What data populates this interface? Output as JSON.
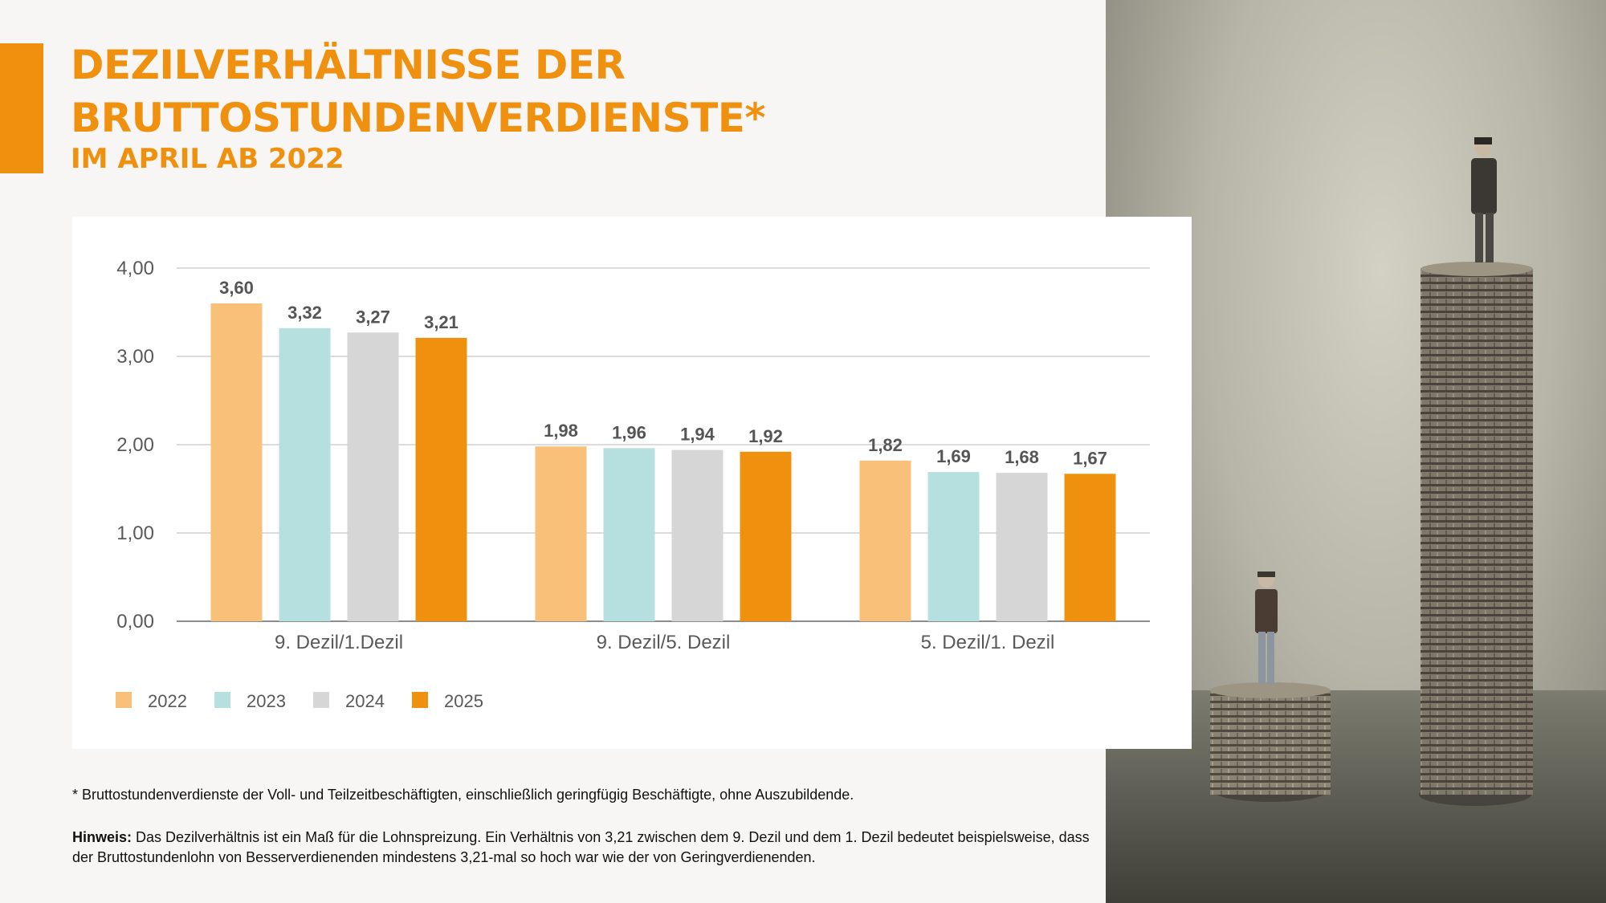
{
  "header": {
    "title_line1": "DEZILVERHÄLTNISSE DER",
    "title_line2": "BRUTTOSTUNDENVERDIENSTE*",
    "subtitle": "IM APRIL AB 2022"
  },
  "colors": {
    "accent": "#f0900f",
    "2022": "#f9c07a",
    "2023": "#b6dfe0",
    "2024": "#d6d6d6",
    "2025": "#f0900f"
  },
  "chart_data": {
    "type": "bar",
    "title": "Dezilverhältnisse der Bruttostundenverdienste im April ab 2022",
    "categories": [
      "9. Dezil/1.Dezil",
      "9. Dezil/5. Dezil",
      "5. Dezil/1. Dezil"
    ],
    "series": [
      {
        "name": "2022",
        "values": [
          3.6,
          1.98,
          1.82
        ],
        "labels": [
          "3,60",
          "1,98",
          "1,82"
        ]
      },
      {
        "name": "2023",
        "values": [
          3.32,
          1.96,
          1.69
        ],
        "labels": [
          "3,32",
          "1,96",
          "1,69"
        ]
      },
      {
        "name": "2024",
        "values": [
          3.27,
          1.94,
          1.68
        ],
        "labels": [
          "3,27",
          "1,94",
          "1,68"
        ]
      },
      {
        "name": "2025",
        "values": [
          3.21,
          1.92,
          1.67
        ],
        "labels": [
          "3,21",
          "1,92",
          "1,67"
        ]
      }
    ],
    "y_ticks": [
      "0,00",
      "1,00",
      "2,00",
      "3,00",
      "4,00"
    ],
    "ylim": [
      0,
      4
    ],
    "grid": true,
    "legend": "bottom-left"
  },
  "footnote": "* Bruttostundenverdienste der Voll- und Teilzeitbeschäftigten, einschließlich geringfügig Beschäftigte, ohne Auszubildende.",
  "note": {
    "label": "Hinweis:",
    "text": " Das Dezilverhältnis ist ein Maß für die Lohnspreizung. Ein Verhältnis von 3,21 zwischen dem 9. Dezil und dem 1. Dezil bedeutet beispielsweise, dass der Bruttostundenlohn von Besserverdienenden mindestens 3,21-mal so hoch war wie der von Geringverdienenden."
  }
}
